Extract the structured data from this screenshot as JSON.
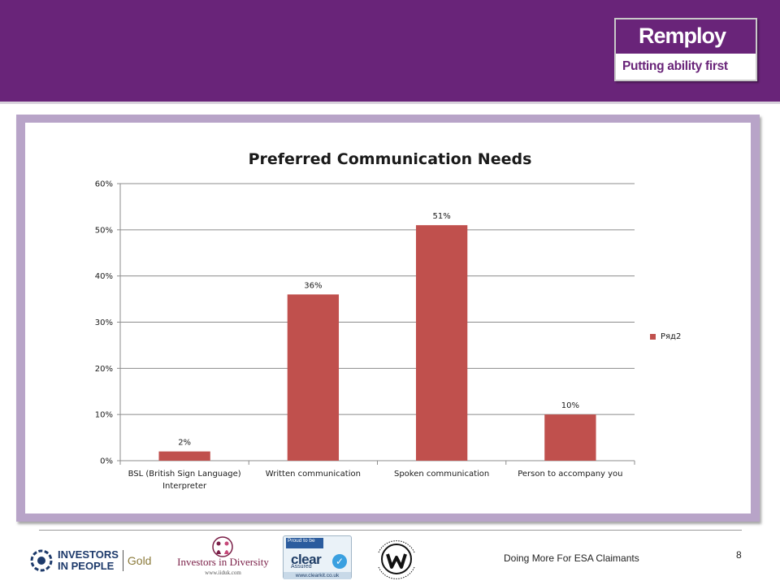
{
  "header": {
    "band_color": "#692479",
    "logo_name": "Remploy",
    "logo_tagline": "Putting ability first"
  },
  "chart_data": {
    "type": "bar",
    "title": "Preferred Communication Needs",
    "categories": [
      [
        "BSL (British Sign Language)",
        "Interpreter"
      ],
      [
        "Written communication"
      ],
      [
        "Spoken communication"
      ],
      [
        "Person to accompany you"
      ]
    ],
    "series": [
      {
        "name": "Ряд2",
        "values": [
          0.02,
          0.36,
          0.51,
          0.1
        ],
        "color": "#c0504d"
      }
    ],
    "data_labels": [
      "2%",
      "36%",
      "51%",
      "10%"
    ],
    "ylim": [
      0,
      0.6
    ],
    "yticks": [
      0,
      0.1,
      0.2,
      0.3,
      0.4,
      0.5,
      0.6
    ],
    "ytick_labels": [
      "0%",
      "10%",
      "20%",
      "30%",
      "40%",
      "50%",
      "60%"
    ],
    "grid": true,
    "legend_position": "right",
    "xlabel": "",
    "ylabel": ""
  },
  "footer": {
    "iip_text_line1": "INVESTORS",
    "iip_text_line2": "IN PEOPLE",
    "iip_level": "Gold",
    "iid_text": "Investors in Diversity",
    "iid_url": "www.iiduk.com",
    "clear_proud": "Proud to be",
    "clear_word": "clear",
    "clear_assured": "Assured",
    "clear_url": "www.clearkit.co.uk",
    "disability_logo_text": "POSITIVE ABOUT DISABLED PEOPLE",
    "presentation_title": "Doing More For ESA Claimants",
    "page_number": "8"
  }
}
